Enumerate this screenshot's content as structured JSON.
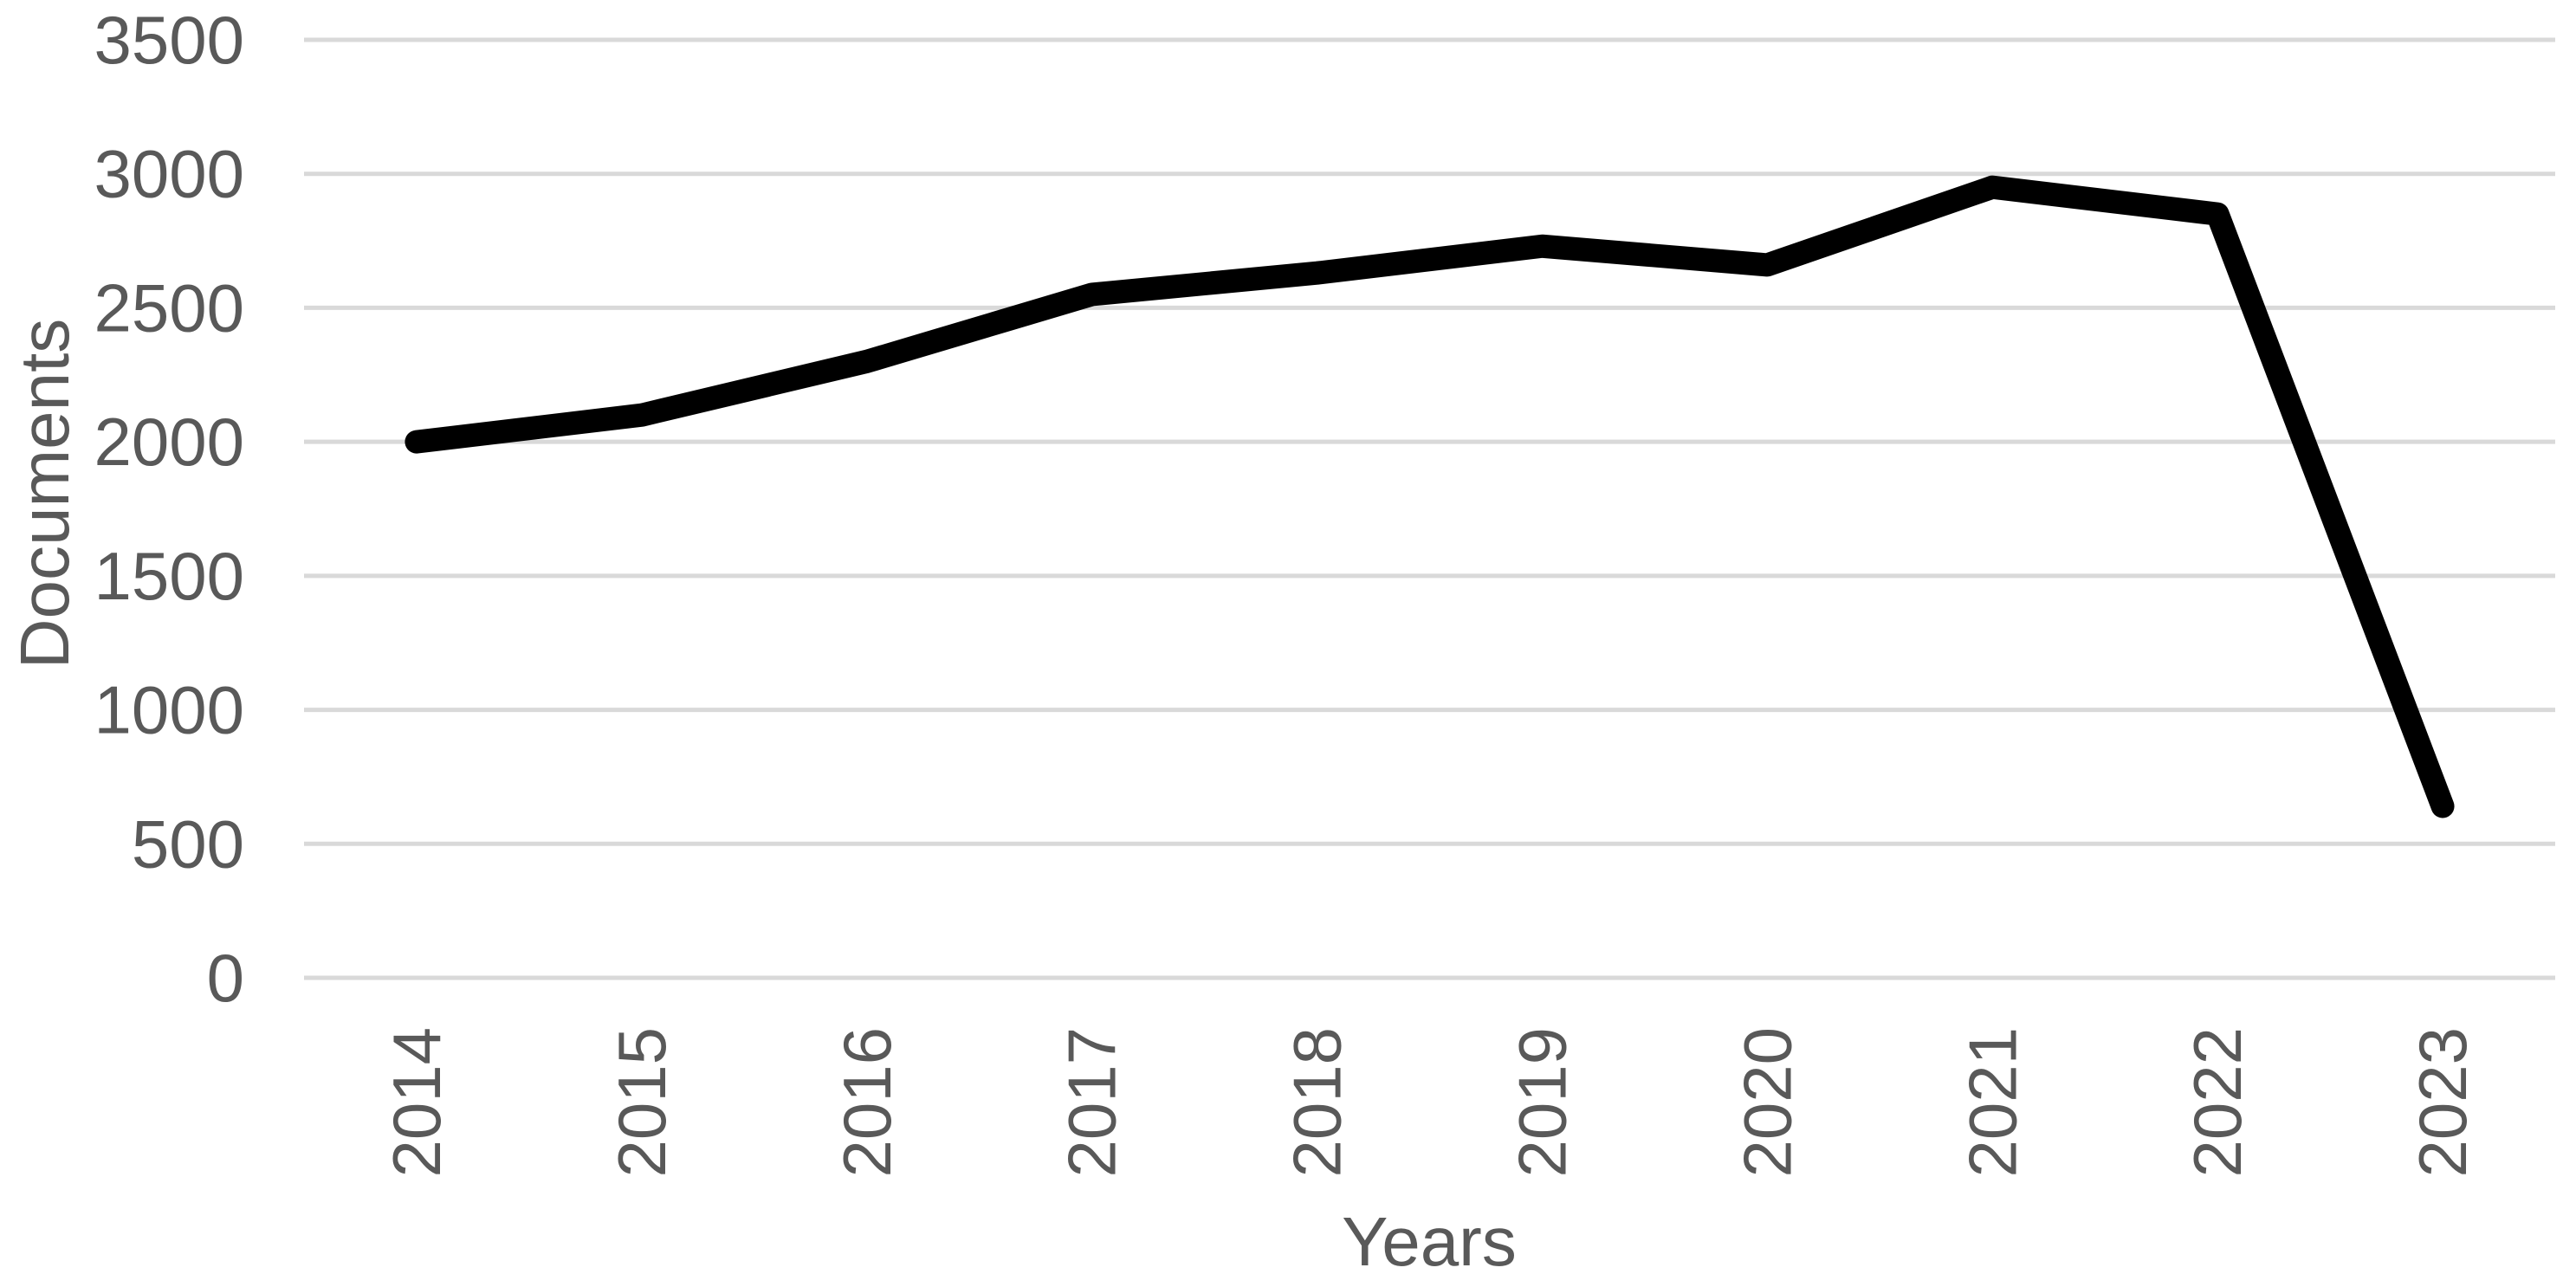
{
  "chart_data": {
    "type": "line",
    "title": "",
    "xlabel": "Years",
    "ylabel": "Documents",
    "x": [
      "2014",
      "2015",
      "2016",
      "2017",
      "2018",
      "2019",
      "2020",
      "2021",
      "2022",
      "2023"
    ],
    "series": [
      {
        "name": "Documents",
        "values": [
          2000,
          2100,
          2300,
          2550,
          2630,
          2730,
          2660,
          2950,
          2850,
          640
        ]
      }
    ],
    "ylim": [
      0,
      3500
    ],
    "y_ticks": [
      0,
      500,
      1000,
      1500,
      2000,
      2500,
      3000,
      3500
    ],
    "grid": "horizontal-only",
    "legend_position": "none",
    "colors": {
      "line": "#000000",
      "gridline": "#d9d9d9",
      "text": "#595959",
      "background": "#ffffff"
    }
  }
}
